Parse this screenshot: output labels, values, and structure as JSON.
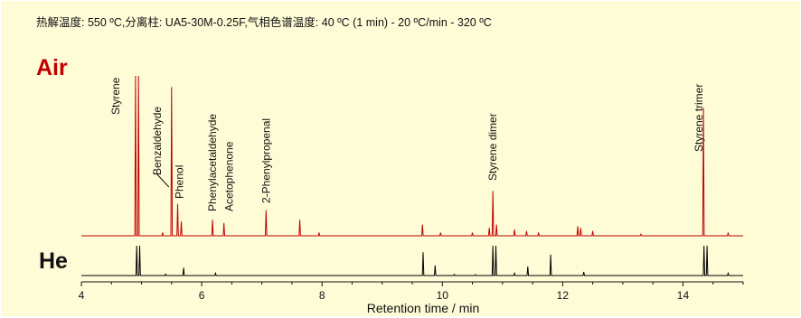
{
  "header": {
    "conditions": "热解温度: 550 ºC,分离柱: UA5-30M-0.25F,气相色谱温度: 40 ºC (1 min) - 20 ºC/min - 320 ºC"
  },
  "colors": {
    "background": "#fefcd7",
    "air": "#c00000",
    "he": "#000000"
  },
  "chart_data": {
    "type": "line",
    "xlabel": "Retention time / min",
    "xlim": [
      4,
      15
    ],
    "xticks": [
      4,
      6,
      8,
      10,
      12,
      14
    ],
    "grid": false,
    "series": [
      {
        "name": "Air",
        "color": "#c00000",
        "baseline": 0,
        "peaks": [
          {
            "rt": 4.9,
            "h": 100
          },
          {
            "rt": 4.95,
            "h": 100
          },
          {
            "rt": 5.35,
            "h": 2
          },
          {
            "rt": 5.5,
            "h": 93
          },
          {
            "rt": 5.6,
            "h": 20
          },
          {
            "rt": 5.66,
            "h": 9
          },
          {
            "rt": 6.18,
            "h": 10
          },
          {
            "rt": 6.37,
            "h": 8
          },
          {
            "rt": 7.07,
            "h": 16
          },
          {
            "rt": 7.63,
            "h": 10
          },
          {
            "rt": 7.95,
            "h": 2
          },
          {
            "rt": 9.67,
            "h": 7
          },
          {
            "rt": 9.97,
            "h": 2
          },
          {
            "rt": 10.5,
            "h": 2
          },
          {
            "rt": 10.78,
            "h": 5
          },
          {
            "rt": 10.84,
            "h": 28
          },
          {
            "rt": 10.9,
            "h": 7
          },
          {
            "rt": 11.2,
            "h": 4
          },
          {
            "rt": 11.4,
            "h": 3
          },
          {
            "rt": 11.6,
            "h": 2
          },
          {
            "rt": 12.25,
            "h": 6
          },
          {
            "rt": 12.3,
            "h": 5
          },
          {
            "rt": 12.5,
            "h": 3
          },
          {
            "rt": 13.3,
            "h": 1
          },
          {
            "rt": 14.34,
            "h": 80
          },
          {
            "rt": 14.75,
            "h": 2
          }
        ]
      },
      {
        "name": "He",
        "color": "#000000",
        "baseline": 0,
        "peaks": [
          {
            "rt": 4.92,
            "h": 100
          },
          {
            "rt": 4.97,
            "h": 100
          },
          {
            "rt": 5.4,
            "h": 5
          },
          {
            "rt": 5.7,
            "h": 26
          },
          {
            "rt": 6.23,
            "h": 8
          },
          {
            "rt": 9.68,
            "h": 78
          },
          {
            "rt": 9.88,
            "h": 34
          },
          {
            "rt": 10.2,
            "h": 4
          },
          {
            "rt": 10.55,
            "h": 3
          },
          {
            "rt": 10.84,
            "h": 100
          },
          {
            "rt": 10.89,
            "h": 100
          },
          {
            "rt": 11.2,
            "h": 8
          },
          {
            "rt": 11.42,
            "h": 30
          },
          {
            "rt": 11.8,
            "h": 70
          },
          {
            "rt": 12.35,
            "h": 12
          },
          {
            "rt": 14.35,
            "h": 100
          },
          {
            "rt": 14.4,
            "h": 100
          },
          {
            "rt": 14.75,
            "h": 8
          }
        ]
      }
    ],
    "annotations": [
      {
        "text": "Styrene",
        "rt": 4.9
      },
      {
        "text": "Benzaldehyde",
        "rt": 5.5
      },
      {
        "text": "Phenol",
        "rt": 5.6
      },
      {
        "text": "Phenylacetaldehyde",
        "rt": 6.18
      },
      {
        "text": "Acetophenone",
        "rt": 6.37
      },
      {
        "text": "2-Phenylpropenal",
        "rt": 7.07
      },
      {
        "text": "Styrene dimer",
        "rt": 10.84
      },
      {
        "text": "Styrene trimer",
        "rt": 14.34
      }
    ],
    "panel_labels": [
      "Air",
      "He"
    ]
  }
}
